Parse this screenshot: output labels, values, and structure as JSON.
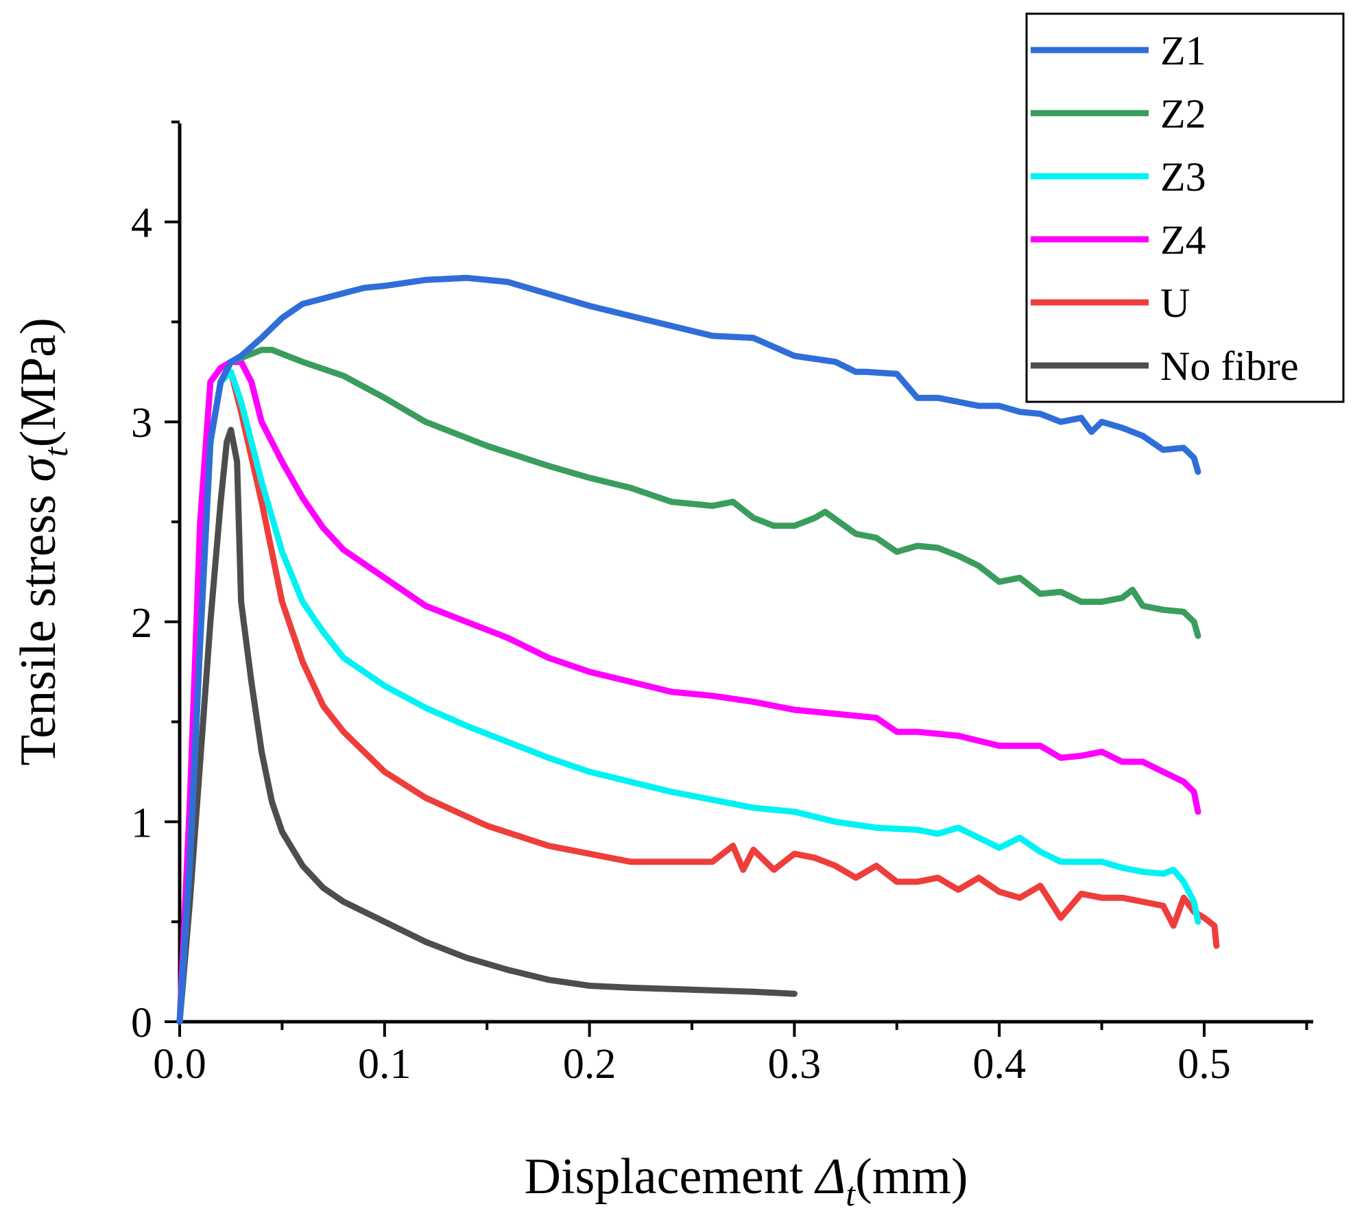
{
  "chart_data": {
    "type": "line",
    "xlabel_main": "Displacement ",
    "xlabel_symbol": "Δ",
    "xlabel_sub": "t",
    "xlabel_unit": "(mm)",
    "ylabel_main": "Tensile stress ",
    "ylabel_symbol": "σ",
    "ylabel_sub": "t",
    "ylabel_unit": "(MPa)",
    "xlim": [
      0,
      0.55
    ],
    "ylim": [
      0,
      4.5
    ],
    "x_ticks": [
      0.0,
      0.1,
      0.2,
      0.3,
      0.4,
      0.5
    ],
    "x_tick_labels": [
      "0.0",
      "0.1",
      "0.2",
      "0.3",
      "0.4",
      "0.5"
    ],
    "y_ticks": [
      0,
      1,
      2,
      3,
      4
    ],
    "y_tick_labels": [
      "0",
      "1",
      "2",
      "3",
      "4"
    ],
    "legend_position": "top-right",
    "series": [
      {
        "name": "Z1",
        "color": "#2f6ed8",
        "x": [
          0,
          0.005,
          0.01,
          0.015,
          0.02,
          0.025,
          0.03,
          0.04,
          0.05,
          0.06,
          0.075,
          0.09,
          0.1,
          0.12,
          0.14,
          0.16,
          0.18,
          0.2,
          0.22,
          0.24,
          0.26,
          0.28,
          0.3,
          0.32,
          0.33,
          0.335,
          0.35,
          0.36,
          0.37,
          0.38,
          0.39,
          0.4,
          0.41,
          0.42,
          0.43,
          0.44,
          0.445,
          0.45,
          0.46,
          0.47,
          0.48,
          0.49,
          0.495,
          0.497
        ],
        "y": [
          0,
          0.8,
          1.9,
          2.9,
          3.2,
          3.3,
          3.33,
          3.42,
          3.52,
          3.59,
          3.63,
          3.67,
          3.68,
          3.71,
          3.72,
          3.7,
          3.64,
          3.58,
          3.53,
          3.48,
          3.43,
          3.42,
          3.33,
          3.3,
          3.25,
          3.25,
          3.24,
          3.12,
          3.12,
          3.1,
          3.08,
          3.08,
          3.05,
          3.04,
          3.0,
          3.02,
          2.95,
          3.0,
          2.97,
          2.93,
          2.86,
          2.87,
          2.82,
          2.75
        ]
      },
      {
        "name": "Z2",
        "color": "#3a9d5d",
        "x": [
          0,
          0.005,
          0.01,
          0.015,
          0.02,
          0.025,
          0.03,
          0.04,
          0.045,
          0.05,
          0.06,
          0.08,
          0.1,
          0.12,
          0.15,
          0.18,
          0.2,
          0.22,
          0.24,
          0.26,
          0.27,
          0.28,
          0.29,
          0.3,
          0.31,
          0.315,
          0.33,
          0.34,
          0.35,
          0.36,
          0.37,
          0.38,
          0.39,
          0.4,
          0.41,
          0.42,
          0.43,
          0.44,
          0.45,
          0.46,
          0.465,
          0.47,
          0.48,
          0.49,
          0.495,
          0.497
        ],
        "y": [
          0,
          0.8,
          1.9,
          2.9,
          3.2,
          3.3,
          3.32,
          3.36,
          3.36,
          3.34,
          3.3,
          3.23,
          3.12,
          3.0,
          2.88,
          2.78,
          2.72,
          2.67,
          2.6,
          2.58,
          2.6,
          2.52,
          2.48,
          2.48,
          2.52,
          2.55,
          2.44,
          2.42,
          2.35,
          2.38,
          2.37,
          2.33,
          2.28,
          2.2,
          2.22,
          2.14,
          2.15,
          2.1,
          2.1,
          2.12,
          2.16,
          2.08,
          2.06,
          2.05,
          2.0,
          1.93
        ]
      },
      {
        "name": "Z3",
        "color": "#00f2f2",
        "x": [
          0,
          0.005,
          0.01,
          0.015,
          0.02,
          0.025,
          0.03,
          0.035,
          0.04,
          0.05,
          0.06,
          0.07,
          0.08,
          0.1,
          0.12,
          0.14,
          0.16,
          0.18,
          0.2,
          0.22,
          0.24,
          0.26,
          0.28,
          0.3,
          0.32,
          0.34,
          0.36,
          0.37,
          0.38,
          0.39,
          0.4,
          0.41,
          0.42,
          0.43,
          0.44,
          0.45,
          0.46,
          0.47,
          0.48,
          0.485,
          0.49,
          0.495,
          0.497
        ],
        "y": [
          0,
          0.8,
          1.9,
          2.9,
          3.2,
          3.25,
          3.1,
          2.9,
          2.7,
          2.35,
          2.1,
          1.95,
          1.82,
          1.68,
          1.57,
          1.48,
          1.4,
          1.32,
          1.25,
          1.2,
          1.15,
          1.11,
          1.07,
          1.05,
          1.0,
          0.97,
          0.96,
          0.94,
          0.97,
          0.92,
          0.87,
          0.92,
          0.85,
          0.8,
          0.8,
          0.8,
          0.77,
          0.75,
          0.74,
          0.76,
          0.7,
          0.6,
          0.5
        ]
      },
      {
        "name": "Z4",
        "color": "#ff00ff",
        "x": [
          0,
          0.005,
          0.01,
          0.015,
          0.02,
          0.025,
          0.03,
          0.035,
          0.04,
          0.05,
          0.06,
          0.07,
          0.08,
          0.1,
          0.12,
          0.14,
          0.16,
          0.18,
          0.2,
          0.22,
          0.24,
          0.26,
          0.28,
          0.3,
          0.32,
          0.34,
          0.35,
          0.36,
          0.38,
          0.4,
          0.42,
          0.43,
          0.44,
          0.45,
          0.46,
          0.47,
          0.48,
          0.49,
          0.495,
          0.497
        ],
        "y": [
          0,
          1.1,
          2.5,
          3.2,
          3.27,
          3.3,
          3.3,
          3.2,
          3.0,
          2.8,
          2.62,
          2.47,
          2.36,
          2.22,
          2.08,
          2.0,
          1.92,
          1.82,
          1.75,
          1.7,
          1.65,
          1.63,
          1.6,
          1.56,
          1.54,
          1.52,
          1.45,
          1.45,
          1.43,
          1.38,
          1.38,
          1.32,
          1.33,
          1.35,
          1.3,
          1.3,
          1.25,
          1.2,
          1.15,
          1.05
        ]
      },
      {
        "name": "U",
        "color": "#ee3e3b",
        "x": [
          0,
          0.005,
          0.01,
          0.015,
          0.02,
          0.025,
          0.03,
          0.04,
          0.05,
          0.06,
          0.07,
          0.08,
          0.1,
          0.12,
          0.15,
          0.18,
          0.2,
          0.22,
          0.24,
          0.26,
          0.27,
          0.275,
          0.28,
          0.29,
          0.3,
          0.31,
          0.32,
          0.33,
          0.34,
          0.35,
          0.36,
          0.37,
          0.38,
          0.39,
          0.4,
          0.41,
          0.42,
          0.43,
          0.44,
          0.45,
          0.46,
          0.47,
          0.48,
          0.485,
          0.49,
          0.495,
          0.5,
          0.505,
          0.506
        ],
        "y": [
          0,
          0.8,
          1.9,
          2.9,
          3.2,
          3.25,
          3.05,
          2.6,
          2.1,
          1.8,
          1.58,
          1.45,
          1.25,
          1.12,
          0.98,
          0.88,
          0.84,
          0.8,
          0.8,
          0.8,
          0.88,
          0.76,
          0.86,
          0.76,
          0.84,
          0.82,
          0.78,
          0.72,
          0.78,
          0.7,
          0.7,
          0.72,
          0.66,
          0.72,
          0.65,
          0.62,
          0.68,
          0.52,
          0.64,
          0.62,
          0.62,
          0.6,
          0.58,
          0.48,
          0.62,
          0.55,
          0.52,
          0.48,
          0.38
        ]
      },
      {
        "name": "No fibre",
        "color": "#4d4d4d",
        "x": [
          0,
          0.005,
          0.01,
          0.015,
          0.02,
          0.023,
          0.025,
          0.028,
          0.03,
          0.035,
          0.04,
          0.045,
          0.05,
          0.06,
          0.07,
          0.08,
          0.1,
          0.12,
          0.14,
          0.16,
          0.18,
          0.2,
          0.22,
          0.25,
          0.28,
          0.3
        ],
        "y": [
          0,
          0.6,
          1.3,
          2.0,
          2.6,
          2.9,
          2.96,
          2.8,
          2.1,
          1.7,
          1.35,
          1.1,
          0.95,
          0.78,
          0.67,
          0.6,
          0.5,
          0.4,
          0.32,
          0.26,
          0.21,
          0.18,
          0.17,
          0.16,
          0.15,
          0.14
        ]
      }
    ]
  }
}
